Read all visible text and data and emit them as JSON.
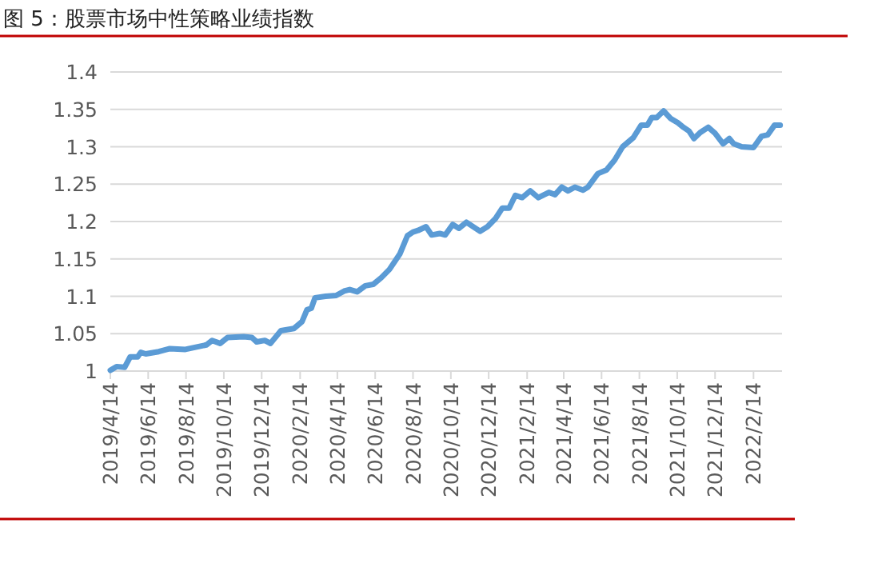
{
  "chart_data": {
    "type": "line",
    "title": "图 5：股票市场中性策略业绩指数",
    "x": [
      "2019-04-14",
      "2019-04-24",
      "2019-05-07",
      "2019-05-16",
      "2019-05-28",
      "2019-06-02",
      "2019-06-10",
      "2019-07-01",
      "2019-07-19",
      "2019-08-13",
      "2019-09-16",
      "2019-09-25",
      "2019-10-08",
      "2019-10-20",
      "2019-11-15",
      "2019-11-28",
      "2019-12-06",
      "2019-12-19",
      "2019-12-28",
      "2020-01-14",
      "2020-02-04",
      "2020-02-17",
      "2020-02-25",
      "2020-03-03",
      "2020-03-09",
      "2020-03-26",
      "2020-04-12",
      "2020-04-25",
      "2020-05-04",
      "2020-05-16",
      "2020-05-29",
      "2020-06-11",
      "2020-06-24",
      "2020-07-07",
      "2020-07-24",
      "2020-08-05",
      "2020-08-14",
      "2020-08-22",
      "2020-09-04",
      "2020-09-13",
      "2020-09-26",
      "2020-10-05",
      "2020-10-17",
      "2020-10-27",
      "2020-11-08",
      "2020-11-30",
      "2020-12-12",
      "2020-12-25",
      "2021-01-05",
      "2021-01-16",
      "2021-01-26",
      "2021-02-06",
      "2021-02-19",
      "2021-03-04",
      "2021-03-21",
      "2021-03-31",
      "2021-04-11",
      "2021-04-21",
      "2021-05-02",
      "2021-05-15",
      "2021-05-23",
      "2021-06-08",
      "2021-06-22",
      "2021-07-05",
      "2021-07-18",
      "2021-08-04",
      "2021-08-17",
      "2021-08-27",
      "2021-09-03",
      "2021-09-11",
      "2021-09-22",
      "2021-10-03",
      "2021-10-15",
      "2021-10-24",
      "2021-11-02",
      "2021-11-10",
      "2021-11-20",
      "2021-12-03",
      "2021-12-14",
      "2021-12-27",
      "2022-01-06",
      "2022-01-13",
      "2022-01-26",
      "2022-02-14",
      "2022-02-27",
      "2022-03-09",
      "2022-03-20",
      "2022-03-29"
    ],
    "series": [
      {
        "color": "#5b9bd5",
        "values": [
          1.001,
          1.006,
          1.005,
          1.019,
          1.019,
          1.025,
          1.023,
          1.026,
          1.03,
          1.029,
          1.035,
          1.041,
          1.037,
          1.045,
          1.046,
          1.045,
          1.039,
          1.041,
          1.037,
          1.054,
          1.057,
          1.066,
          1.082,
          1.084,
          1.098,
          1.1,
          1.101,
          1.107,
          1.109,
          1.106,
          1.114,
          1.116,
          1.125,
          1.136,
          1.157,
          1.181,
          1.186,
          1.188,
          1.193,
          1.182,
          1.184,
          1.182,
          1.196,
          1.191,
          1.199,
          1.187,
          1.193,
          1.204,
          1.218,
          1.218,
          1.235,
          1.232,
          1.241,
          1.232,
          1.239,
          1.236,
          1.246,
          1.241,
          1.246,
          1.242,
          1.246,
          1.264,
          1.269,
          1.282,
          1.3,
          1.312,
          1.329,
          1.329,
          1.339,
          1.339,
          1.348,
          1.338,
          1.332,
          1.326,
          1.321,
          1.311,
          1.319,
          1.326,
          1.318,
          1.304,
          1.311,
          1.304,
          1.3,
          1.299,
          1.314,
          1.316,
          1.329,
          1.329
        ]
      }
    ],
    "xlim": [
      "2019-04-14",
      "2022-04-01"
    ],
    "xticks": [
      {
        "value": "2019-04-14",
        "label": "2019/4/14"
      },
      {
        "value": "2019-06-14",
        "label": "2019/6/14"
      },
      {
        "value": "2019-08-14",
        "label": "2019/8/14"
      },
      {
        "value": "2019-10-14",
        "label": "2019/10/14"
      },
      {
        "value": "2019-12-14",
        "label": "2019/12/14"
      },
      {
        "value": "2020-02-14",
        "label": "2020/2/14"
      },
      {
        "value": "2020-04-14",
        "label": "2020/4/14"
      },
      {
        "value": "2020-06-14",
        "label": "2020/6/14"
      },
      {
        "value": "2020-08-14",
        "label": "2020/8/14"
      },
      {
        "value": "2020-10-14",
        "label": "2020/10/14"
      },
      {
        "value": "2020-12-14",
        "label": "2020/12/14"
      },
      {
        "value": "2021-02-14",
        "label": "2021/2/14"
      },
      {
        "value": "2021-04-14",
        "label": "2021/4/14"
      },
      {
        "value": "2021-06-14",
        "label": "2021/6/14"
      },
      {
        "value": "2021-08-14",
        "label": "2021/8/14"
      },
      {
        "value": "2021-10-14",
        "label": "2021/10/14"
      },
      {
        "value": "2021-12-14",
        "label": "2021/12/14"
      },
      {
        "value": "2022-02-14",
        "label": "2022/2/14"
      }
    ],
    "ylim": [
      1,
      1.4
    ],
    "yticks": [
      1,
      1.05,
      1.1,
      1.15,
      1.2,
      1.25,
      1.3,
      1.35,
      1.4
    ],
    "grid": "y",
    "marker": "none",
    "line_style": "solid"
  }
}
